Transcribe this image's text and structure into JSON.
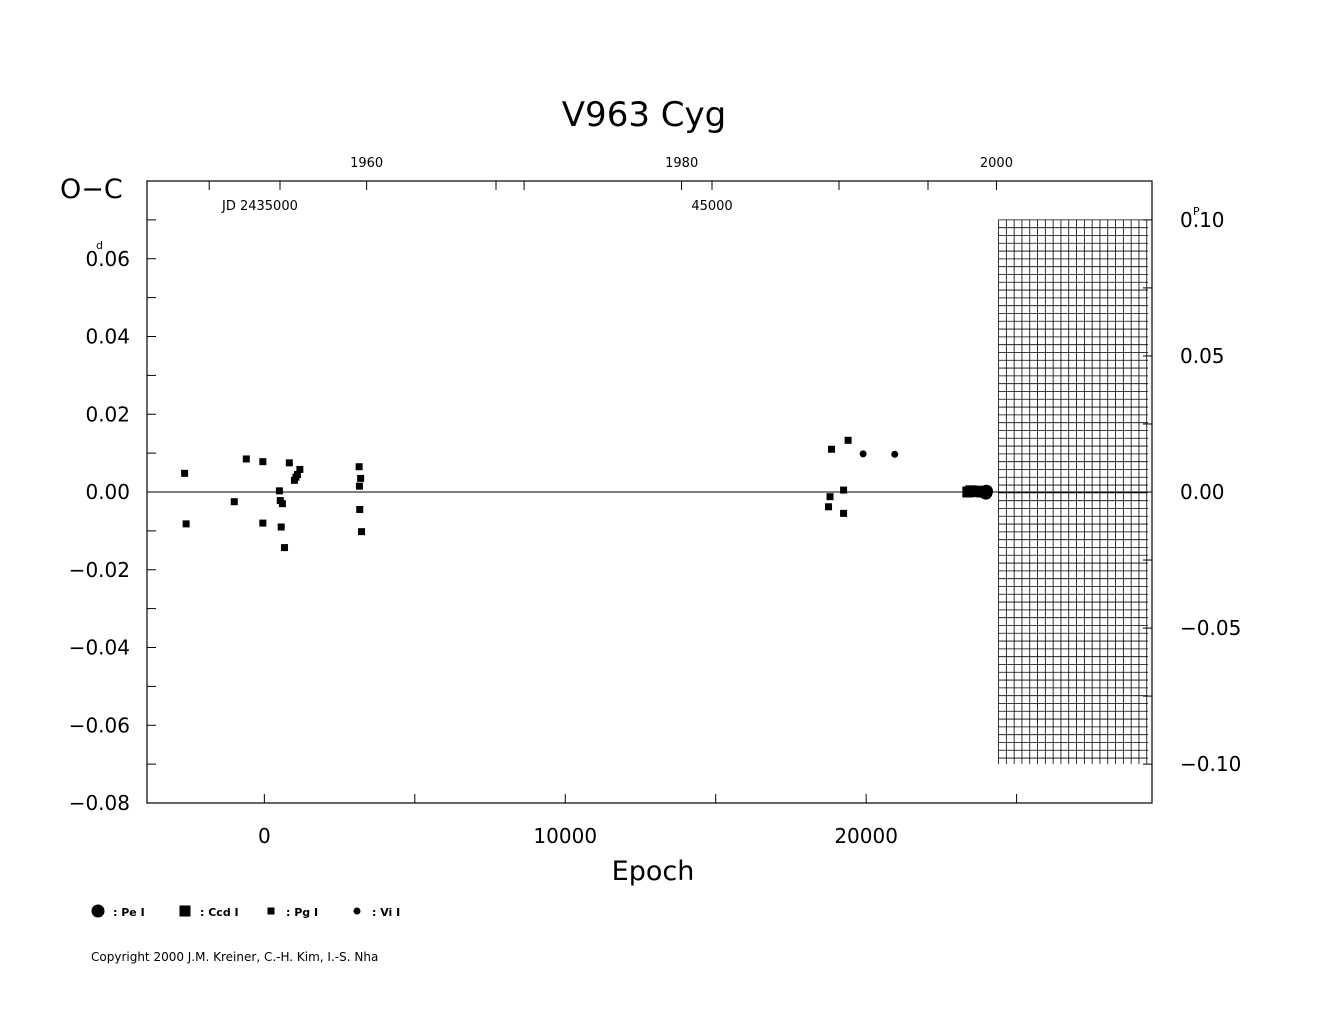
{
  "chart_data": {
    "type": "scatter",
    "title": "V963  Cyg",
    "ylabel": "O−C",
    "ylabel_unit": "d",
    "xlabel": "Epoch",
    "jd_label": "JD  2435000",
    "jd_label_2": "45000",
    "xlim": [
      -3900,
      29500
    ],
    "ylim": [
      -0.08,
      0.08
    ],
    "x_ticks": [
      0,
      10000,
      20000
    ],
    "y_ticks": [
      -0.08,
      -0.06,
      -0.04,
      -0.02,
      0.0,
      0.02,
      0.04,
      0.06
    ],
    "y_tick_labels": [
      "−0.08",
      "−0.06",
      "−0.04",
      "−0.02",
      "0.00",
      "0.02",
      "0.04",
      "0.06"
    ],
    "x_tick_labels": [
      "0",
      "10000",
      "20000"
    ],
    "top_axis_years": [
      {
        "year": "1960",
        "epoch": 3400
      },
      {
        "year": "1980",
        "epoch": 13870
      },
      {
        "year": "2000",
        "epoch": 24330
      }
    ],
    "right_axis": {
      "unit": "P",
      "ticks": [
        0.1,
        0.05,
        0.0,
        -0.05,
        -0.1
      ],
      "tick_labels": [
        "0.10",
        "0.05",
        "0.00",
        "−0.05",
        "−0.10"
      ],
      "period_days": 0.7
    },
    "future_epoch_start": 24400,
    "series": [
      {
        "name": "Pe",
        "marker": "large-circle",
        "points": [
          [
            23920,
            0.0
          ],
          [
            23980,
            -0.0003
          ],
          [
            24000,
            0.0002
          ]
        ]
      },
      {
        "name": "Ccd",
        "marker": "large-square",
        "points": [
          [
            23380,
            0.0
          ],
          [
            23480,
            0.0003
          ],
          [
            23560,
            0.0002
          ],
          [
            23680,
            0.0001
          ],
          [
            23760,
            0.0002
          ],
          [
            23850,
            0.0
          ]
        ]
      },
      {
        "name": "Pg",
        "marker": "small-square",
        "points": [
          [
            -2650,
            0.0048
          ],
          [
            -2600,
            -0.0082
          ],
          [
            -1000,
            -0.0025
          ],
          [
            -600,
            0.0085
          ],
          [
            -50,
            0.0078
          ],
          [
            -50,
            -0.008
          ],
          [
            500,
            0.0003
          ],
          [
            530,
            -0.0022
          ],
          [
            560,
            -0.009
          ],
          [
            600,
            -0.003
          ],
          [
            670,
            -0.0143
          ],
          [
            830,
            0.0075
          ],
          [
            1000,
            0.003
          ],
          [
            1050,
            0.0038
          ],
          [
            1100,
            0.0045
          ],
          [
            1180,
            0.0058
          ],
          [
            3150,
            0.0065
          ],
          [
            3160,
            0.0015
          ],
          [
            3170,
            -0.0045
          ],
          [
            3200,
            0.0035
          ],
          [
            3230,
            -0.0102
          ],
          [
            18750,
            -0.0038
          ],
          [
            18800,
            -0.0012
          ],
          [
            18850,
            0.011
          ],
          [
            19250,
            0.0005
          ],
          [
            19250,
            -0.0055
          ],
          [
            19400,
            0.0133
          ]
        ]
      },
      {
        "name": "Vi",
        "marker": "small-circle",
        "points": [
          [
            19900,
            0.0098
          ],
          [
            20950,
            0.0097
          ]
        ]
      }
    ],
    "legend": [
      {
        "symbol": "large-circle",
        "label": ": Pe  I"
      },
      {
        "symbol": "large-square",
        "label": ": Ccd  I"
      },
      {
        "symbol": "small-square",
        "label": ": Pg  I"
      },
      {
        "symbol": "small-circle",
        "label": ": Vi  I"
      }
    ],
    "legend_placement": "bottom-left",
    "grid": false
  },
  "copyright": "Copyright 2000 J.M. Kreiner, C.-H. Kim, I.-S. Nha"
}
